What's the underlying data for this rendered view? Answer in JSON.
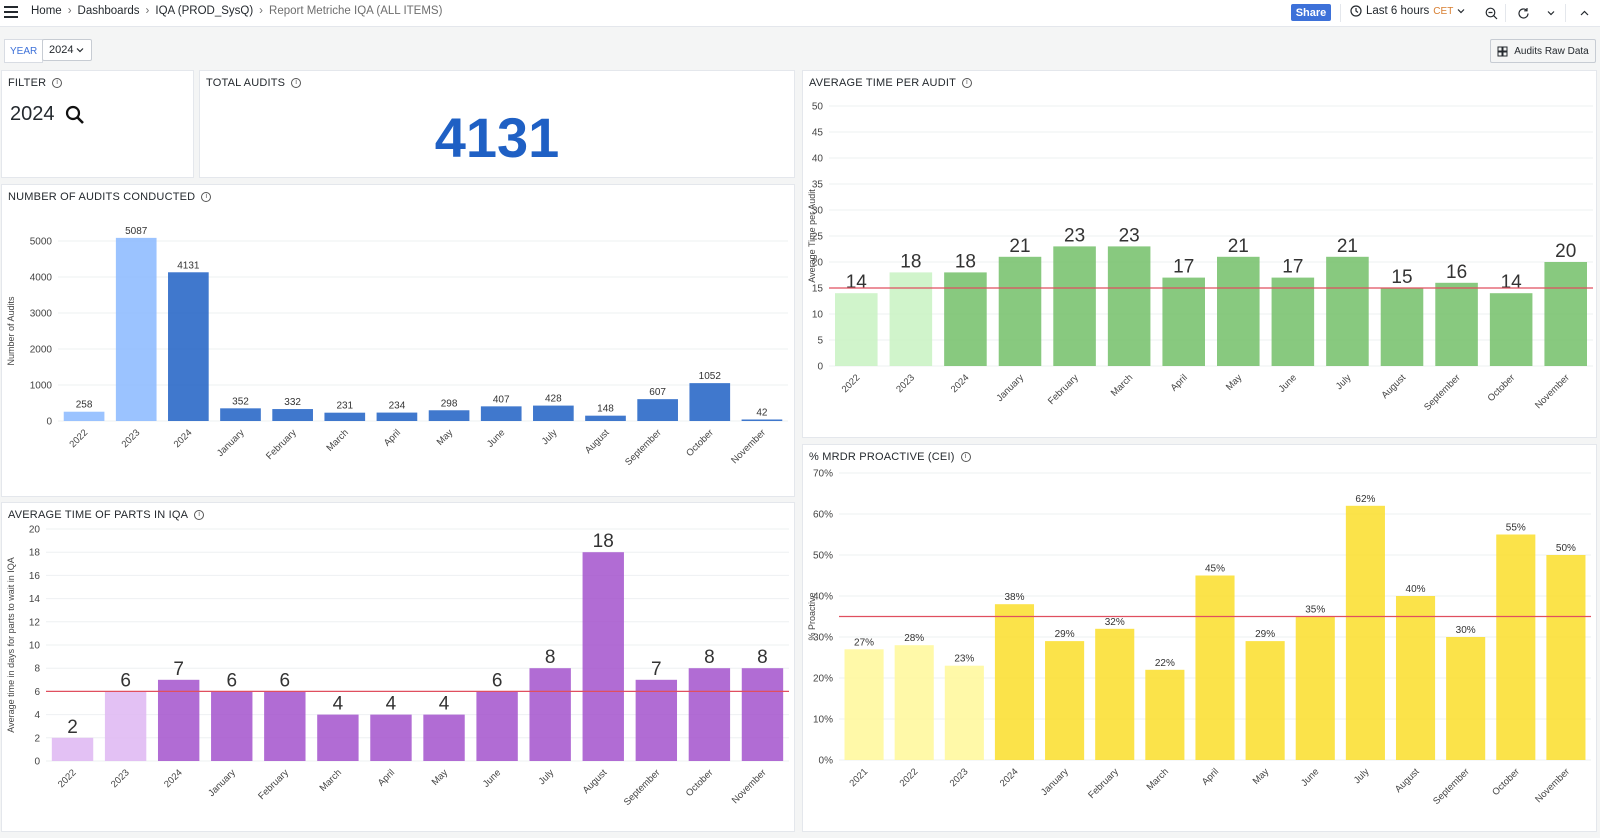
{
  "header": {
    "breadcrumbs": [
      "Home",
      "Dashboards",
      "IQA (PROD_SysQ)",
      "Report Metriche IQA (ALL ITEMS)"
    ],
    "share_label": "Share",
    "time_range": "Last 6 hours",
    "timezone": "CET"
  },
  "variables": {
    "year_label": "YEAR",
    "year_value": "2024",
    "raw_button": "Audits Raw Data"
  },
  "filter_panel": {
    "title": "FILTER",
    "value": "2024"
  },
  "total_panel": {
    "title": "TOTAL AUDITS",
    "value": "4131"
  },
  "panels": {
    "audits": {
      "title": "NUMBER OF AUDITS CONDUCTED"
    },
    "avgtime": {
      "title": "AVERAGE TIME PER AUDIT"
    },
    "parts": {
      "title": "AVERAGE TIME OF PARTS IN IQA"
    },
    "mrdr": {
      "title": "% MRDR PROACTIVE (CEI)"
    }
  },
  "chart_data": [
    {
      "id": "audits",
      "type": "bar",
      "categories": [
        "2022",
        "2023",
        "2024",
        "January",
        "February",
        "March",
        "April",
        "May",
        "June",
        "July",
        "August",
        "September",
        "October",
        "November"
      ],
      "values": [
        258,
        5087,
        4131,
        352,
        332,
        231,
        234,
        298,
        407,
        428,
        148,
        607,
        1052,
        42
      ],
      "labels": [
        "258",
        "5087",
        "4131",
        "352",
        "332",
        "231",
        "234",
        "298",
        "407",
        "428",
        "148",
        "607",
        "1052",
        "42"
      ],
      "colors": [
        "#8ab8ff",
        "#8ab8ff",
        "#1f60c4",
        "#1f60c4",
        "#1f60c4",
        "#1f60c4",
        "#1f60c4",
        "#1f60c4",
        "#1f60c4",
        "#1f60c4",
        "#1f60c4",
        "#1f60c4",
        "#1f60c4",
        "#1f60c4"
      ],
      "ylabel": "Number of Audits",
      "ylim": [
        0,
        5000
      ],
      "yticks": [
        "0",
        "1000",
        "2000",
        "3000",
        "4000",
        "5000"
      ],
      "grid": true
    },
    {
      "id": "avgtime",
      "type": "bar",
      "categories": [
        "2022",
        "2023",
        "2024",
        "January",
        "February",
        "March",
        "April",
        "May",
        "June",
        "July",
        "August",
        "September",
        "October",
        "November"
      ],
      "values": [
        14,
        18,
        18,
        21,
        23,
        23,
        17,
        21,
        17,
        21,
        15,
        16,
        14,
        20
      ],
      "labels": [
        "14",
        "18",
        "18",
        "21",
        "23",
        "23",
        "17",
        "21",
        "17",
        "21",
        "15",
        "16",
        "14",
        "20"
      ],
      "colors": [
        "#c8f2c2",
        "#c8f2c2",
        "#73bf69",
        "#73bf69",
        "#73bf69",
        "#73bf69",
        "#73bf69",
        "#73bf69",
        "#73bf69",
        "#73bf69",
        "#73bf69",
        "#73bf69",
        "#73bf69",
        "#73bf69"
      ],
      "ylabel": "Average Time per Audit",
      "ylim": [
        0,
        50
      ],
      "yticks": [
        "0",
        "5",
        "10",
        "15",
        "20",
        "25",
        "30",
        "35",
        "40",
        "45",
        "50"
      ],
      "threshold": 15,
      "grid": true
    },
    {
      "id": "parts",
      "type": "bar",
      "categories": [
        "2022",
        "2023",
        "2024",
        "January",
        "February",
        "March",
        "April",
        "May",
        "June",
        "July",
        "August",
        "September",
        "October",
        "November"
      ],
      "values": [
        2,
        6,
        7,
        6,
        6,
        4,
        4,
        4,
        6,
        8,
        18,
        7,
        8,
        8
      ],
      "labels": [
        "2",
        "6",
        "7",
        "6",
        "6",
        "4",
        "4",
        "4",
        "6",
        "8",
        "18",
        "7",
        "8",
        "8"
      ],
      "colors": [
        "#deb6f2",
        "#deb6f2",
        "#a352cc",
        "#a352cc",
        "#a352cc",
        "#a352cc",
        "#a352cc",
        "#a352cc",
        "#a352cc",
        "#a352cc",
        "#a352cc",
        "#a352cc",
        "#a352cc",
        "#a352cc"
      ],
      "ylabel": "Average time in days for parts to wait in IQA",
      "ylim": [
        0,
        20
      ],
      "yticks": [
        "0",
        "2",
        "4",
        "6",
        "8",
        "10",
        "12",
        "14",
        "16",
        "18",
        "20"
      ],
      "threshold": 6,
      "grid": true
    },
    {
      "id": "mrdr",
      "type": "bar",
      "categories": [
        "2021",
        "2022",
        "2023",
        "2024",
        "January",
        "February",
        "March",
        "April",
        "May",
        "June",
        "July",
        "August",
        "September",
        "October",
        "November"
      ],
      "values": [
        27,
        28,
        23,
        38,
        29,
        32,
        22,
        45,
        29,
        35,
        62,
        40,
        30,
        55,
        50
      ],
      "labels": [
        "27%",
        "28%",
        "23%",
        "38%",
        "29%",
        "32%",
        "22%",
        "45%",
        "29%",
        "35%",
        "62%",
        "40%",
        "30%",
        "55%",
        "50%"
      ],
      "colors": [
        "#fff899",
        "#fff899",
        "#fff899",
        "#fade2a",
        "#fade2a",
        "#fade2a",
        "#fade2a",
        "#fade2a",
        "#fade2a",
        "#fade2a",
        "#fade2a",
        "#fade2a",
        "#fade2a",
        "#fade2a",
        "#fade2a"
      ],
      "ylabel": "% Proactive",
      "ylim": [
        0,
        70
      ],
      "yticks": [
        "0%",
        "10%",
        "20%",
        "30%",
        "40%",
        "50%",
        "60%",
        "70%"
      ],
      "threshold": 35,
      "grid": true
    }
  ]
}
